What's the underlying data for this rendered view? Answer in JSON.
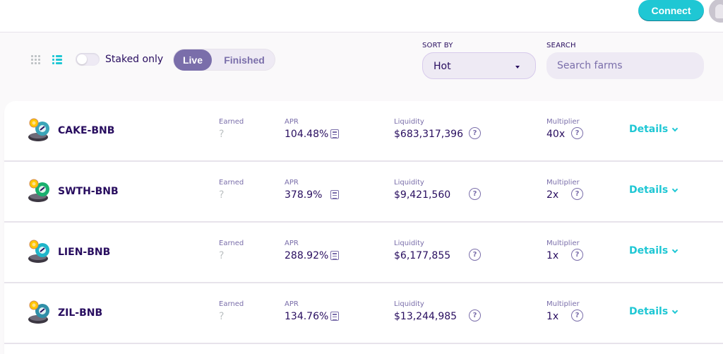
{
  "header": {
    "connect_label": "Connect"
  },
  "controls": {
    "staked_only_label": "Staked only",
    "tabs": [
      {
        "label": "Live",
        "active": true
      },
      {
        "label": "Finished",
        "active": false
      }
    ],
    "sort_by_label": "SORT BY",
    "sort_value": "Hot",
    "search_label": "SEARCH",
    "search_placeholder": "Search farms"
  },
  "colors": {
    "accent": "#1FC7D4",
    "primary_text": "#280D5F",
    "secondary": "#7A6EAA"
  },
  "icons": {
    "grid_view": "grid-icon",
    "list_view": "list-icon",
    "calculator": "calculator-icon",
    "help": "help-circle-icon",
    "details_caret": "chevron-down-icon"
  },
  "farms": [
    {
      "name": "CAKE-BNB",
      "earned_label": "Earned",
      "earned": "?",
      "apr_label": "APR",
      "apr": "104.48%",
      "liquidity_label": "Liquidity",
      "liquidity": "$683,317,396",
      "multiplier_label": "Multiplier",
      "multiplier": "40x",
      "details_label": "Details",
      "token_color": "#3AA5B8"
    },
    {
      "name": "SWTH-BNB",
      "earned_label": "Earned",
      "earned": "?",
      "apr_label": "APR",
      "apr": "378.9%",
      "liquidity_label": "Liquidity",
      "liquidity": "$9,421,560",
      "multiplier_label": "Multiplier",
      "multiplier": "2x",
      "details_label": "Details",
      "token_color": "#19B06E"
    },
    {
      "name": "LIEN-BNB",
      "earned_label": "Earned",
      "earned": "?",
      "apr_label": "APR",
      "apr": "288.92%",
      "liquidity_label": "Liquidity",
      "liquidity": "$6,177,855",
      "multiplier_label": "Multiplier",
      "multiplier": "1x",
      "details_label": "Details",
      "token_color": "#1FB5C9"
    },
    {
      "name": "ZIL-BNB",
      "earned_label": "Earned",
      "earned": "?",
      "apr_label": "APR",
      "apr": "134.76%",
      "liquidity_label": "Liquidity",
      "liquidity": "$13,244,985",
      "multiplier_label": "Multiplier",
      "multiplier": "1x",
      "details_label": "Details",
      "token_color": "#2F8FA8"
    }
  ]
}
